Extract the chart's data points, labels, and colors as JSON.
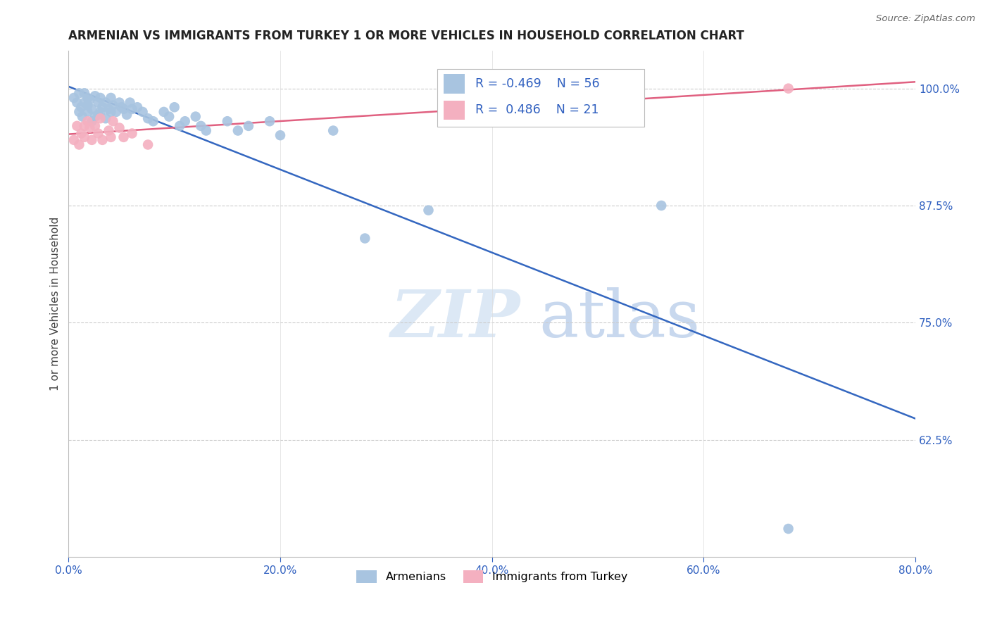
{
  "title": "ARMENIAN VS IMMIGRANTS FROM TURKEY 1 OR MORE VEHICLES IN HOUSEHOLD CORRELATION CHART",
  "source": "Source: ZipAtlas.com",
  "ylabel": "1 or more Vehicles in Household",
  "xlim": [
    0.0,
    0.8
  ],
  "ylim": [
    0.5,
    1.04
  ],
  "ytick_vals": [
    0.625,
    0.75,
    0.875,
    1.0
  ],
  "ytick_labels": [
    "62.5%",
    "75.0%",
    "87.5%",
    "100.0%"
  ],
  "xtick_vals": [
    0.0,
    0.2,
    0.4,
    0.6,
    0.8
  ],
  "xtick_labels": [
    "0.0%",
    "20.0%",
    "40.0%",
    "60.0%",
    "80.0%"
  ],
  "legend_armenians": "Armenians",
  "legend_turkey": "Immigrants from Turkey",
  "R_armenians": -0.469,
  "N_armenians": 56,
  "R_turkey": 0.486,
  "N_turkey": 21,
  "armenian_color": "#a8c4e0",
  "turkey_color": "#f4b0c0",
  "armenian_line_color": "#3467c0",
  "turkey_line_color": "#e06080",
  "background_color": "#ffffff",
  "watermark_zip": "ZIP",
  "watermark_atlas": "atlas",
  "armenians_x": [
    0.005,
    0.008,
    0.01,
    0.01,
    0.012,
    0.013,
    0.015,
    0.015,
    0.018,
    0.018,
    0.018,
    0.02,
    0.022,
    0.022,
    0.025,
    0.025,
    0.028,
    0.028,
    0.03,
    0.03,
    0.032,
    0.035,
    0.035,
    0.038,
    0.04,
    0.04,
    0.042,
    0.045,
    0.048,
    0.05,
    0.052,
    0.055,
    0.058,
    0.06,
    0.065,
    0.07,
    0.075,
    0.08,
    0.09,
    0.095,
    0.1,
    0.105,
    0.11,
    0.12,
    0.125,
    0.13,
    0.15,
    0.16,
    0.17,
    0.19,
    0.2,
    0.25,
    0.28,
    0.34,
    0.56,
    0.68
  ],
  "armenians_y": [
    0.99,
    0.985,
    0.995,
    0.975,
    0.98,
    0.97,
    0.995,
    0.985,
    0.99,
    0.982,
    0.975,
    0.988,
    0.978,
    0.965,
    0.992,
    0.97,
    0.985,
    0.972,
    0.99,
    0.975,
    0.98,
    0.985,
    0.968,
    0.978,
    0.99,
    0.975,
    0.982,
    0.975,
    0.985,
    0.98,
    0.978,
    0.972,
    0.985,
    0.978,
    0.98,
    0.975,
    0.968,
    0.965,
    0.975,
    0.97,
    0.98,
    0.96,
    0.965,
    0.97,
    0.96,
    0.955,
    0.965,
    0.955,
    0.96,
    0.965,
    0.95,
    0.955,
    0.84,
    0.87,
    0.875,
    0.53
  ],
  "turkey_x": [
    0.005,
    0.008,
    0.01,
    0.012,
    0.015,
    0.015,
    0.018,
    0.02,
    0.022,
    0.025,
    0.028,
    0.03,
    0.032,
    0.038,
    0.04,
    0.042,
    0.048,
    0.052,
    0.06,
    0.075,
    0.68
  ],
  "turkey_y": [
    0.945,
    0.96,
    0.94,
    0.952,
    0.96,
    0.948,
    0.965,
    0.958,
    0.945,
    0.96,
    0.952,
    0.968,
    0.945,
    0.955,
    0.948,
    0.965,
    0.958,
    0.948,
    0.952,
    0.94,
    1.0
  ]
}
